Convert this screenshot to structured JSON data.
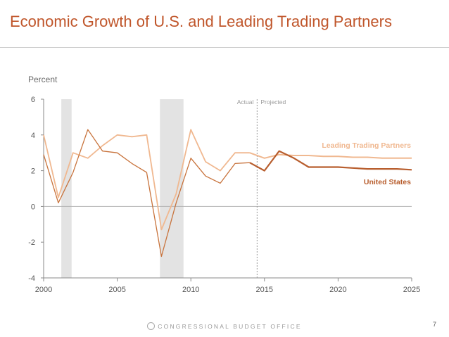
{
  "slide": {
    "title": "Economic Growth of U.S. and Leading Trading Partners",
    "footer": "CONGRESSIONAL BUDGET OFFICE",
    "page_number": "7"
  },
  "colors": {
    "title": "#c0562b",
    "us": "#c8733c",
    "us_projected": "#b85e2e",
    "partners": "#f0b890",
    "recession": "#e3e3e3",
    "axis": "#8a8a8a"
  },
  "chart_data": {
    "type": "line",
    "title": "",
    "xlabel": "",
    "ylabel": "Percent",
    "xlim": [
      2000,
      2025
    ],
    "ylim": [
      -4,
      6
    ],
    "xticks": [
      2000,
      2005,
      2010,
      2015,
      2020,
      2025
    ],
    "yticks": [
      -4,
      -2,
      0,
      2,
      4,
      6
    ],
    "grid": false,
    "divider": {
      "x": 2014.5,
      "left_label": "Actual",
      "right_label": "Projected"
    },
    "recessions": [
      [
        2001.2,
        2001.9
      ],
      [
        2007.9,
        2009.5
      ]
    ],
    "series": [
      {
        "name": "Leading Trading Partners",
        "role": "partners",
        "x": [
          2000,
          2001,
          2002,
          2003,
          2004,
          2005,
          2006,
          2007,
          2008,
          2009,
          2010,
          2011,
          2012,
          2013,
          2014,
          2015,
          2016,
          2017,
          2018,
          2019,
          2020,
          2021,
          2022,
          2023,
          2024,
          2025
        ],
        "values": [
          4.0,
          0.5,
          3.0,
          2.7,
          3.4,
          4.0,
          3.9,
          4.0,
          -1.3,
          0.7,
          4.3,
          2.5,
          2.0,
          3.0,
          3.0,
          2.7,
          2.9,
          2.85,
          2.85,
          2.8,
          2.8,
          2.75,
          2.75,
          2.7,
          2.7,
          2.7
        ]
      },
      {
        "name": "United States",
        "role": "us",
        "x": [
          2000,
          2001,
          2002,
          2003,
          2004,
          2005,
          2006,
          2007,
          2008,
          2009,
          2010,
          2011,
          2012,
          2013,
          2014,
          2015,
          2016,
          2017,
          2018,
          2019,
          2020,
          2021,
          2022,
          2023,
          2024,
          2025
        ],
        "values": [
          2.9,
          0.2,
          1.9,
          4.3,
          3.1,
          3.0,
          2.4,
          1.9,
          -2.8,
          0.2,
          2.7,
          1.7,
          1.3,
          2.4,
          2.45,
          2.0,
          3.1,
          2.7,
          2.2,
          2.2,
          2.2,
          2.15,
          2.1,
          2.1,
          2.1,
          2.05
        ]
      }
    ],
    "annotations": [
      {
        "text": "Leading Trading Partners",
        "series": "partners"
      },
      {
        "text": "United States",
        "series": "us"
      }
    ]
  }
}
